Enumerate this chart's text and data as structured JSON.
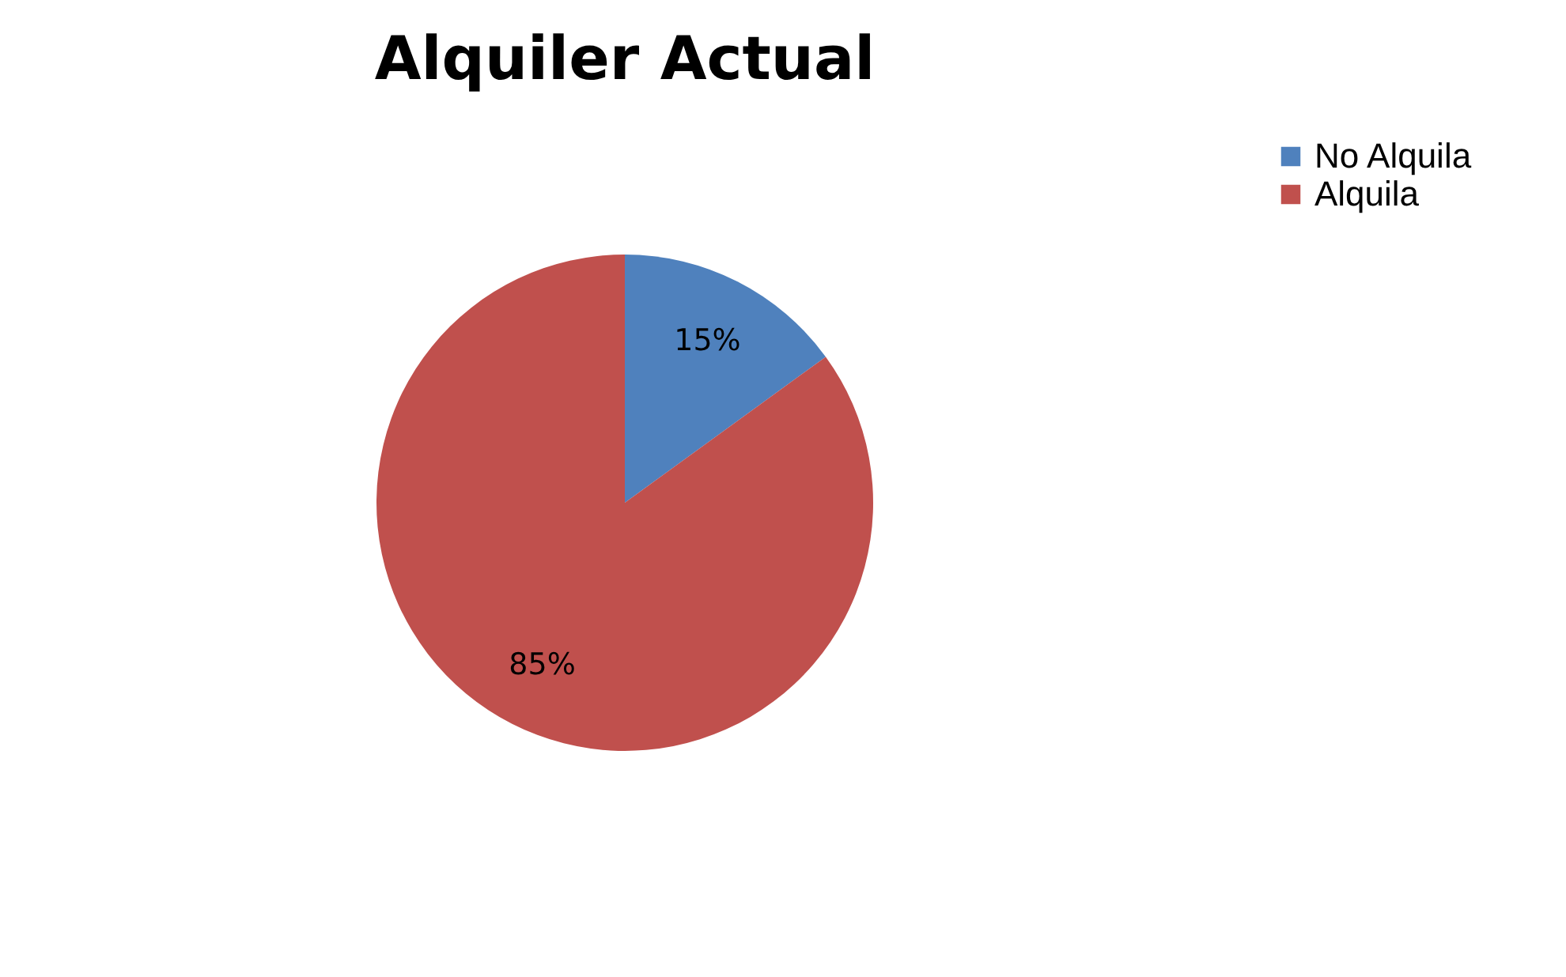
{
  "chart_data": {
    "type": "pie",
    "title": "Alquiler Actual",
    "categories": [
      "No Alquila",
      "Alquila"
    ],
    "values": [
      15,
      85
    ],
    "colors": [
      "#4f81bd",
      "#c0504d"
    ],
    "value_labels": [
      "15%",
      "85%"
    ],
    "legend": "right"
  }
}
